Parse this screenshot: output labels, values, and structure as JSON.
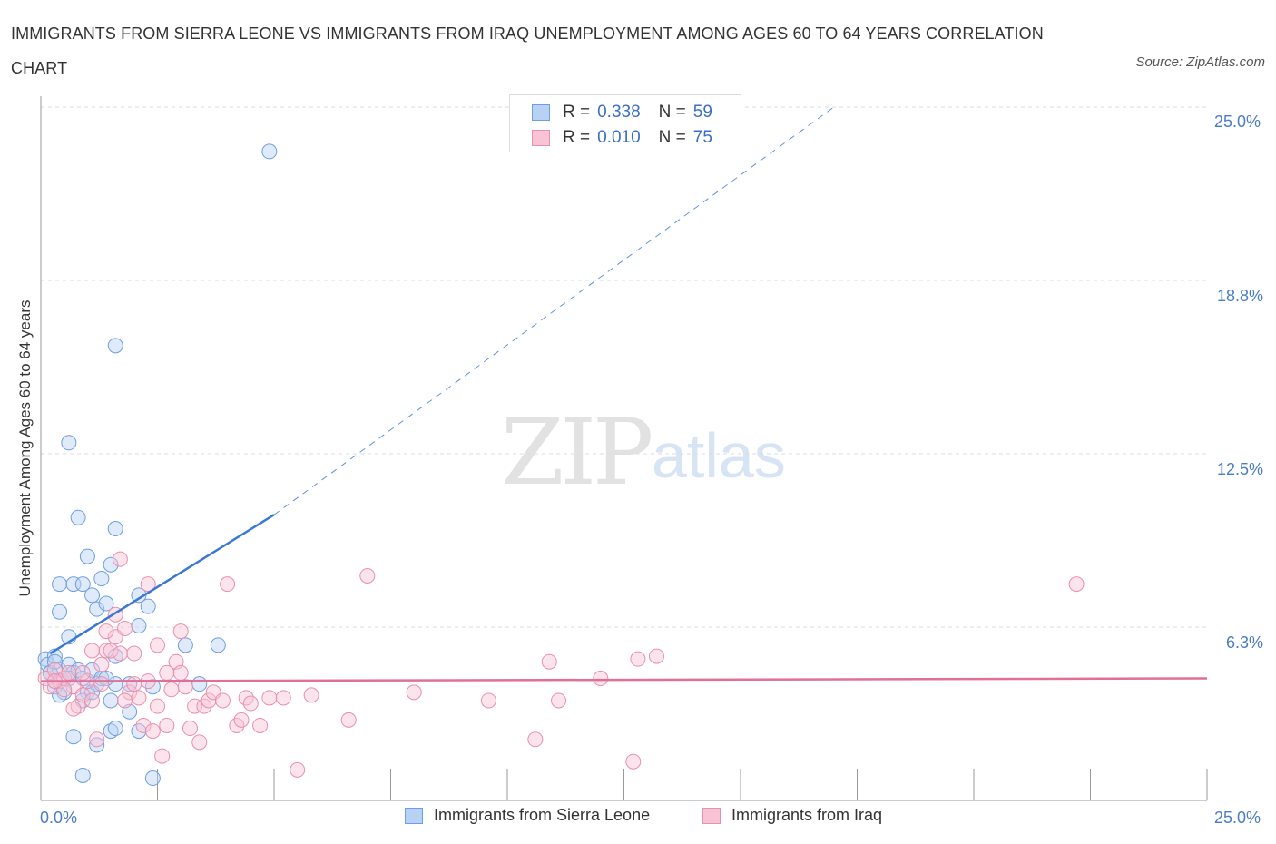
{
  "title": "IMMIGRANTS FROM SIERRA LEONE VS IMMIGRANTS FROM IRAQ UNEMPLOYMENT AMONG AGES 60 TO 64 YEARS CORRELATION CHART",
  "source": "Source: ZipAtlas.com",
  "watermark": {
    "zip": "ZIP",
    "atlas": "atlas"
  },
  "legend": {
    "r_label": "R =",
    "n_label": "N =",
    "series": [
      {
        "r": "0.338",
        "n": "59"
      },
      {
        "r": "0.010",
        "n": "75"
      }
    ]
  },
  "colors": {
    "blue_fill": "#b8d2f5",
    "blue_stroke": "#6f9ee0",
    "blue_line": "#3a78d4",
    "pink_fill": "#f8c3d5",
    "pink_stroke": "#ea8fae",
    "pink_line": "#e0709a",
    "grid": "#dddddd",
    "axis": "#999999",
    "tick_text": "#4a7cc7"
  },
  "chart_data": {
    "type": "scatter",
    "title": "IMMIGRANTS FROM SIERRA LEONE VS IMMIGRANTS FROM IRAQ UNEMPLOYMENT AMONG AGES 60 TO 64 YEARS CORRELATION CHART",
    "xlabel": "",
    "ylabel": "Unemployment Among Ages 60 to 64 years",
    "xlim": [
      0,
      25
    ],
    "ylim": [
      0,
      25
    ],
    "x_tick_labels": [
      "0.0%",
      "25.0%"
    ],
    "y_tick_labels": [
      "6.3%",
      "12.5%",
      "18.8%",
      "25.0%"
    ],
    "y_ticks": [
      6.25,
      12.5,
      18.75,
      25.0
    ],
    "grid": true,
    "legend_position": "bottom",
    "series": [
      {
        "name": "Immigrants from Sierra Leone",
        "color": "blue",
        "trend": {
          "x": [
            0.2,
            5.0
          ],
          "y": [
            5.3,
            10.3
          ],
          "dashed_extension_to": [
            17.0,
            25.0
          ]
        },
        "points": [
          [
            0.1,
            5.1
          ],
          [
            0.15,
            4.9
          ],
          [
            0.2,
            4.6
          ],
          [
            0.3,
            5.2
          ],
          [
            0.4,
            4.7
          ],
          [
            0.5,
            4.4
          ],
          [
            0.6,
            4.9
          ],
          [
            0.7,
            4.6
          ],
          [
            0.3,
            4.3
          ],
          [
            0.5,
            3.9
          ],
          [
            0.3,
            4.1
          ],
          [
            0.4,
            3.8
          ],
          [
            0.6,
            4.4
          ],
          [
            0.8,
            4.7
          ],
          [
            0.9,
            4.4
          ],
          [
            1.1,
            4.7
          ],
          [
            1.0,
            3.9
          ],
          [
            1.2,
            4.2
          ],
          [
            1.3,
            4.4
          ],
          [
            1.5,
            3.6
          ],
          [
            1.6,
            4.2
          ],
          [
            0.4,
            6.8
          ],
          [
            0.6,
            5.9
          ],
          [
            0.4,
            7.8
          ],
          [
            0.7,
            7.8
          ],
          [
            0.9,
            7.8
          ],
          [
            1.1,
            7.4
          ],
          [
            1.2,
            6.9
          ],
          [
            1.4,
            7.1
          ],
          [
            1.3,
            8.0
          ],
          [
            1.0,
            8.8
          ],
          [
            0.8,
            10.2
          ],
          [
            1.5,
            8.5
          ],
          [
            1.6,
            9.8
          ],
          [
            1.6,
            5.2
          ],
          [
            2.1,
            7.4
          ],
          [
            2.3,
            7.0
          ],
          [
            2.1,
            6.3
          ],
          [
            3.1,
            5.6
          ],
          [
            3.8,
            5.6
          ],
          [
            3.4,
            4.2
          ],
          [
            0.6,
            12.9
          ],
          [
            1.6,
            16.4
          ],
          [
            4.9,
            23.4
          ],
          [
            0.7,
            2.3
          ],
          [
            1.2,
            2.0
          ],
          [
            1.5,
            2.5
          ],
          [
            1.6,
            2.6
          ],
          [
            1.9,
            3.2
          ],
          [
            2.1,
            2.5
          ],
          [
            2.4,
            4.1
          ],
          [
            2.4,
            0.8
          ],
          [
            0.9,
            0.9
          ],
          [
            0.2,
            4.6
          ],
          [
            0.3,
            5.0
          ],
          [
            1.9,
            4.2
          ],
          [
            0.9,
            3.6
          ],
          [
            1.1,
            3.9
          ],
          [
            1.4,
            4.4
          ]
        ]
      },
      {
        "name": "Immigrants from Iraq",
        "color": "pink",
        "trend": {
          "x": [
            0.0,
            25.0
          ],
          "y": [
            4.3,
            4.4
          ]
        },
        "points": [
          [
            0.1,
            4.4
          ],
          [
            0.2,
            4.1
          ],
          [
            0.3,
            4.7
          ],
          [
            0.4,
            4.3
          ],
          [
            0.5,
            4.4
          ],
          [
            0.6,
            4.6
          ],
          [
            0.7,
            4.1
          ],
          [
            0.8,
            3.4
          ],
          [
            0.9,
            3.8
          ],
          [
            1.0,
            4.3
          ],
          [
            1.1,
            3.6
          ],
          [
            1.2,
            2.2
          ],
          [
            1.3,
            4.9
          ],
          [
            1.4,
            5.4
          ],
          [
            1.5,
            5.4
          ],
          [
            1.6,
            5.9
          ],
          [
            1.7,
            5.3
          ],
          [
            1.8,
            6.2
          ],
          [
            1.9,
            3.9
          ],
          [
            2.0,
            4.2
          ],
          [
            2.1,
            3.7
          ],
          [
            2.2,
            2.7
          ],
          [
            2.3,
            4.3
          ],
          [
            2.4,
            2.5
          ],
          [
            2.5,
            3.4
          ],
          [
            2.6,
            1.6
          ],
          [
            2.7,
            2.7
          ],
          [
            2.8,
            4.0
          ],
          [
            2.9,
            5.0
          ],
          [
            3.0,
            6.1
          ],
          [
            3.2,
            2.6
          ],
          [
            3.3,
            3.4
          ],
          [
            3.4,
            2.1
          ],
          [
            3.5,
            3.4
          ],
          [
            3.6,
            3.6
          ],
          [
            3.7,
            3.9
          ],
          [
            3.9,
            3.6
          ],
          [
            4.0,
            7.8
          ],
          [
            4.2,
            2.7
          ],
          [
            4.3,
            2.9
          ],
          [
            4.4,
            3.7
          ],
          [
            4.5,
            3.5
          ],
          [
            4.7,
            2.7
          ],
          [
            4.9,
            3.7
          ],
          [
            5.2,
            3.7
          ],
          [
            5.5,
            1.1
          ],
          [
            5.8,
            3.8
          ],
          [
            6.6,
            2.9
          ],
          [
            7.0,
            8.1
          ],
          [
            8.0,
            3.9
          ],
          [
            9.6,
            3.6
          ],
          [
            10.6,
            2.2
          ],
          [
            10.9,
            5.0
          ],
          [
            11.1,
            3.6
          ],
          [
            12.0,
            4.4
          ],
          [
            12.7,
            1.4
          ],
          [
            12.8,
            5.1
          ],
          [
            13.2,
            5.2
          ],
          [
            22.2,
            7.8
          ],
          [
            1.7,
            8.7
          ],
          [
            2.3,
            7.8
          ],
          [
            1.4,
            6.1
          ],
          [
            1.6,
            6.7
          ],
          [
            1.1,
            5.4
          ],
          [
            0.9,
            4.6
          ],
          [
            0.7,
            3.3
          ],
          [
            2.0,
            5.3
          ],
          [
            2.5,
            5.6
          ],
          [
            3.0,
            4.6
          ],
          [
            1.8,
            3.6
          ],
          [
            0.5,
            4.0
          ],
          [
            0.3,
            4.3
          ],
          [
            1.3,
            4.2
          ],
          [
            2.7,
            4.6
          ],
          [
            3.1,
            4.1
          ]
        ]
      }
    ]
  }
}
